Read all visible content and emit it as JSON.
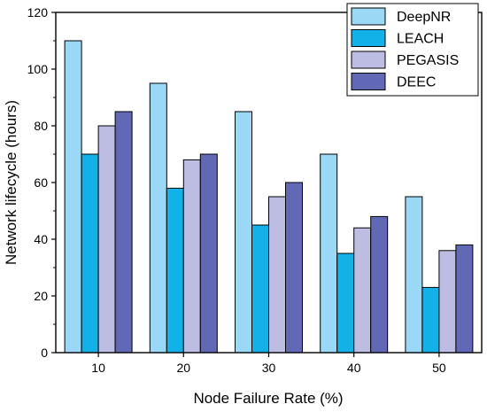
{
  "chart_data": {
    "type": "bar",
    "title": "",
    "xlabel": "Node Failure Rate (%)",
    "ylabel": "Network lifecycle (hours)",
    "categories": [
      "10",
      "20",
      "30",
      "40",
      "50"
    ],
    "ylim": [
      0,
      120
    ],
    "yticks": [
      0,
      20,
      40,
      60,
      80,
      100,
      120
    ],
    "grid": false,
    "legend_position": "top-right",
    "series": [
      {
        "name": "DeepNR",
        "color": "#9ad8f5",
        "values": [
          110,
          95,
          85,
          70,
          55
        ]
      },
      {
        "name": "LEACH",
        "color": "#12b2e8",
        "values": [
          70,
          58,
          45,
          35,
          23
        ]
      },
      {
        "name": "PEGASIS",
        "color": "#bdbde3",
        "values": [
          80,
          68,
          55,
          44,
          36
        ]
      },
      {
        "name": "DEEC",
        "color": "#6168b5",
        "values": [
          85,
          70,
          60,
          48,
          38
        ]
      }
    ]
  }
}
